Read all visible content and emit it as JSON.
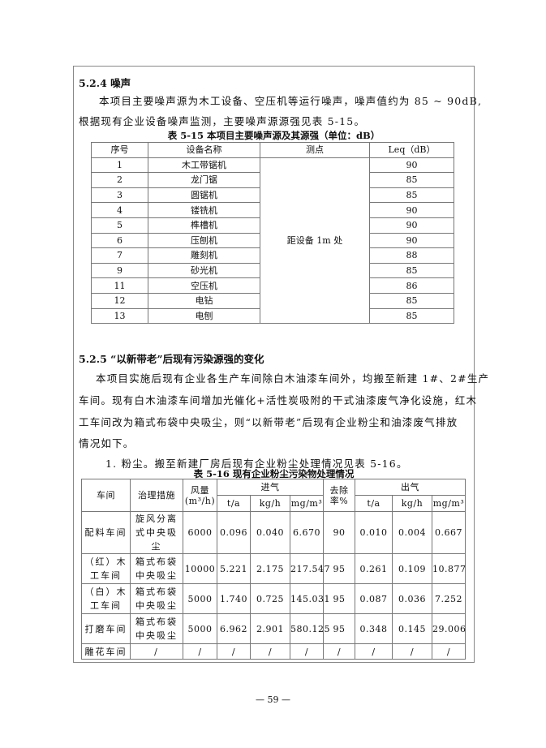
{
  "section_524": {
    "heading": "5.2.4  噪声",
    "para_line1": "本项目主要噪声源为木工设备、空压机等运行噪声，噪声值约为 85 ~ 90dB,",
    "para_line2": "根据现有企业设备噪声监测，主要噪声源源强见表 5-15。"
  },
  "table_515": {
    "caption": "表 5-15  本项目主要噪声源及其源强（单位：dB）",
    "headers": [
      "序号",
      "设备名称",
      "测点",
      "Leq（dB）"
    ],
    "measure_point": "距设备 1m 处",
    "rows": [
      {
        "no": "1",
        "name": "木工带锯机",
        "leq": "90"
      },
      {
        "no": "2",
        "name": "龙门锯",
        "leq": "85"
      },
      {
        "no": "3",
        "name": "圆锯机",
        "leq": "85"
      },
      {
        "no": "4",
        "name": "镂铣机",
        "leq": "90"
      },
      {
        "no": "5",
        "name": "榫槽机",
        "leq": "90"
      },
      {
        "no": "6",
        "name": "压刨机",
        "leq": "90"
      },
      {
        "no": "7",
        "name": "雕刻机",
        "leq": "88"
      },
      {
        "no": "9",
        "name": "砂光机",
        "leq": "85"
      },
      {
        "no": "11",
        "name": "空压机",
        "leq": "86"
      },
      {
        "no": "12",
        "name": "电钻",
        "leq": "85"
      },
      {
        "no": "13",
        "name": "电刨",
        "leq": "85"
      }
    ]
  },
  "section_525": {
    "heading": "5.2.5  “以新带老”后现有污染源强的变化",
    "lines": [
      "本项目实施后现有企业各生产车间除白木油漆车间外，均搬至新建 1#、2#生产",
      "车间。现有白木油漆车间增加光催化+活性炭吸附的干式油漆废气净化设施，红木",
      "工车间改为箱式布袋中央吸尘，则“以新带老”后现有企业粉尘和油漆废气排放",
      "情况如下。"
    ],
    "item1": "1. 粉尘。搬至新建厂房后现有企业粉尘处理情况见表 5-16。"
  },
  "table_516": {
    "caption": "表 5-16  现有企业粉尘污染物处理情况",
    "h_workshop": "车间",
    "h_measure": "治理措施",
    "h_flow": "风量",
    "h_flow_unit": "(m³/h)",
    "h_in": "进气",
    "h_rate": "去除率%",
    "h_out": "出气",
    "sub": [
      "t/a",
      "kg/h",
      "mg/m³",
      "t/a",
      "kg/h",
      "mg/m³"
    ],
    "rows": [
      [
        "配料车间",
        "旋风分离式中央吸尘",
        "6000",
        "0.096",
        "0.040",
        "6.670",
        "90",
        "0.010",
        "0.004",
        "0.667"
      ],
      [
        "（红）木工车间",
        "箱式布袋中央吸尘",
        "10000",
        "5.221",
        "2.175",
        "217.547",
        "95",
        "0.261",
        "0.109",
        "10.877"
      ],
      [
        "（白）木工车间",
        "箱式布袋中央吸尘",
        "5000",
        "1.740",
        "0.725",
        "145.031",
        "95",
        "0.087",
        "0.036",
        "7.252"
      ],
      [
        "打磨车间",
        "箱式布袋中央吸尘",
        "5000",
        "6.962",
        "2.901",
        "580.125",
        "95",
        "0.348",
        "0.145",
        "29.006"
      ],
      [
        "雕花车间",
        "/",
        "/",
        "/",
        "/",
        "/",
        "/",
        "/",
        "/",
        "/"
      ]
    ]
  },
  "page_number": "— 59 —"
}
